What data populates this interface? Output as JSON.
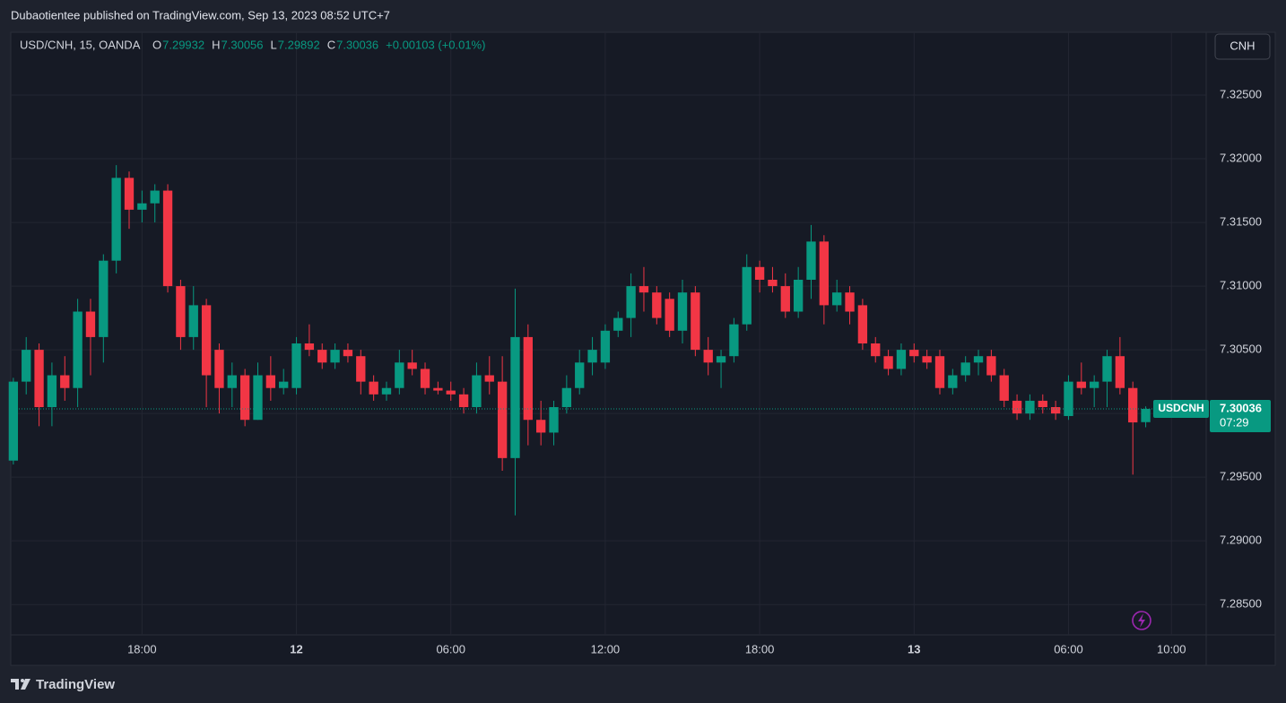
{
  "header": {
    "published": "Dubaotientee published on TradingView.com, Sep 13, 2023 08:52 UTC+7"
  },
  "footer": {
    "brand": "TradingView"
  },
  "chart_data": {
    "type": "candlestick",
    "title": "USD/CNH, 15, OANDA",
    "ohlc_labels": [
      "O",
      "H",
      "L",
      "C"
    ],
    "change_label": "+0.00103 (+0.01%)",
    "currency": "CNH",
    "symbol_tag": "USDCNH",
    "countdown": "07:29",
    "up_color": "#089981",
    "down_color": "#f23645",
    "grid": true,
    "xlim": [
      -0.2,
      92.7
    ],
    "xticks": [
      {
        "value": 10,
        "label": "18:00"
      },
      {
        "value": 22,
        "label": "12"
      },
      {
        "value": 34,
        "label": "06:00"
      },
      {
        "value": 46,
        "label": "12:00"
      },
      {
        "value": 58,
        "label": "18:00"
      },
      {
        "value": 70,
        "label": "13"
      },
      {
        "value": 82,
        "label": "06:00"
      },
      {
        "value": 90,
        "label": "10:00"
      }
    ],
    "ylim": [
      7.28262,
      7.32993
    ],
    "yticks": [
      {
        "value": 7.285,
        "label": "7.28500"
      },
      {
        "value": 7.29,
        "label": "7.29000"
      },
      {
        "value": 7.295,
        "label": "7.29500"
      },
      {
        "value": 7.3,
        "label": "7.30000"
      },
      {
        "value": 7.305,
        "label": "7.30500"
      },
      {
        "value": 7.31,
        "label": "7.31000"
      },
      {
        "value": 7.315,
        "label": "7.31500"
      },
      {
        "value": 7.32,
        "label": "7.32000"
      },
      {
        "value": 7.325,
        "label": "7.32500"
      }
    ],
    "open": [
      7.2963,
      7.3025,
      7.305,
      7.3005,
      7.303,
      7.302,
      7.308,
      7.306,
      7.312,
      7.3185,
      7.316,
      7.3165,
      7.3175,
      7.31,
      7.306,
      7.3085,
      7.305,
      7.302,
      7.303,
      7.2995,
      7.303,
      7.302,
      7.302,
      7.3055,
      7.305,
      7.304,
      7.305,
      7.3045,
      7.3025,
      7.3015,
      7.302,
      7.304,
      7.3035,
      7.302,
      7.3018,
      7.3015,
      7.3005,
      7.303,
      7.3025,
      7.2965,
      7.306,
      7.2995,
      7.2985,
      7.3005,
      7.302,
      7.304,
      7.304,
      7.3065,
      7.3075,
      7.31,
      7.3095,
      7.309,
      7.3065,
      7.3095,
      7.305,
      7.304,
      7.3045,
      7.307,
      7.3115,
      7.3105,
      7.31,
      7.308,
      7.3105,
      7.3135,
      7.3085,
      7.3095,
      7.3085,
      7.3055,
      7.3045,
      7.3035,
      7.305,
      7.3045,
      7.3045,
      7.302,
      7.303,
      7.304,
      7.3045,
      7.303,
      7.301,
      7.3,
      7.301,
      7.3005,
      7.2998,
      7.3025,
      7.302,
      7.3025,
      7.3045,
      7.302,
      7.29932
    ],
    "high": [
      7.3028,
      7.306,
      7.3055,
      7.304,
      7.3045,
      7.309,
      7.309,
      7.3125,
      7.3195,
      7.319,
      7.3175,
      7.318,
      7.318,
      7.3105,
      7.31,
      7.309,
      7.3055,
      7.304,
      7.3035,
      7.304,
      7.3045,
      7.3035,
      7.306,
      7.307,
      7.3055,
      7.3055,
      7.3055,
      7.305,
      7.303,
      7.3025,
      7.305,
      7.305,
      7.304,
      7.3025,
      7.3025,
      7.302,
      7.304,
      7.3045,
      7.3045,
      7.3098,
      7.307,
      7.301,
      7.301,
      7.303,
      7.305,
      7.306,
      7.307,
      7.308,
      7.311,
      7.3115,
      7.31,
      7.3095,
      7.3105,
      7.31,
      7.306,
      7.305,
      7.3075,
      7.3125,
      7.312,
      7.3115,
      7.311,
      7.3115,
      7.3148,
      7.314,
      7.3105,
      7.31,
      7.309,
      7.306,
      7.305,
      7.3055,
      7.3055,
      7.305,
      7.305,
      7.3035,
      7.3045,
      7.305,
      7.305,
      7.3035,
      7.3015,
      7.3015,
      7.3015,
      7.301,
      7.303,
      7.304,
      7.303,
      7.305,
      7.306,
      7.3025,
      7.30056
    ],
    "low": [
      7.296,
      7.3015,
      7.299,
      7.299,
      7.301,
      7.3005,
      7.303,
      7.304,
      7.311,
      7.3145,
      7.315,
      7.315,
      7.3095,
      7.305,
      7.305,
      7.3005,
      7.3,
      7.3005,
      7.299,
      7.2995,
      7.301,
      7.3015,
      7.3015,
      7.3045,
      7.3035,
      7.3035,
      7.304,
      7.3015,
      7.301,
      7.301,
      7.3015,
      7.303,
      7.3015,
      7.3015,
      7.301,
      7.3,
      7.3,
      7.3015,
      7.2955,
      7.292,
      7.2975,
      7.2975,
      7.2975,
      7.3,
      7.3015,
      7.303,
      7.3035,
      7.306,
      7.306,
      7.308,
      7.307,
      7.306,
      7.3055,
      7.3045,
      7.303,
      7.302,
      7.304,
      7.3065,
      7.3095,
      7.3095,
      7.3075,
      7.3075,
      7.309,
      7.307,
      7.308,
      7.307,
      7.305,
      7.304,
      7.303,
      7.303,
      7.304,
      7.3035,
      7.3015,
      7.3015,
      7.3025,
      7.303,
      7.3025,
      7.3005,
      7.2995,
      7.2995,
      7.3,
      7.2995,
      7.2995,
      7.3015,
      7.3005,
      7.3005,
      7.3015,
      7.2952,
      7.29892
    ],
    "close": [
      7.3025,
      7.305,
      7.3005,
      7.303,
      7.302,
      7.308,
      7.306,
      7.312,
      7.3185,
      7.316,
      7.3165,
      7.3175,
      7.31,
      7.306,
      7.3085,
      7.303,
      7.302,
      7.303,
      7.2995,
      7.303,
      7.302,
      7.3025,
      7.3055,
      7.305,
      7.304,
      7.305,
      7.3045,
      7.3025,
      7.3015,
      7.302,
      7.304,
      7.3035,
      7.302,
      7.3018,
      7.3015,
      7.3005,
      7.303,
      7.3025,
      7.2965,
      7.306,
      7.2995,
      7.2985,
      7.3005,
      7.302,
      7.304,
      7.305,
      7.3065,
      7.3075,
      7.31,
      7.3095,
      7.3075,
      7.3065,
      7.3095,
      7.305,
      7.304,
      7.3045,
      7.307,
      7.3115,
      7.3105,
      7.31,
      7.308,
      7.3105,
      7.3135,
      7.3085,
      7.3095,
      7.308,
      7.3055,
      7.3045,
      7.3035,
      7.305,
      7.3045,
      7.304,
      7.302,
      7.303,
      7.304,
      7.3045,
      7.303,
      7.301,
      7.3,
      7.301,
      7.3005,
      7.3,
      7.3025,
      7.302,
      7.3025,
      7.3045,
      7.302,
      7.2993,
      7.30036
    ]
  }
}
